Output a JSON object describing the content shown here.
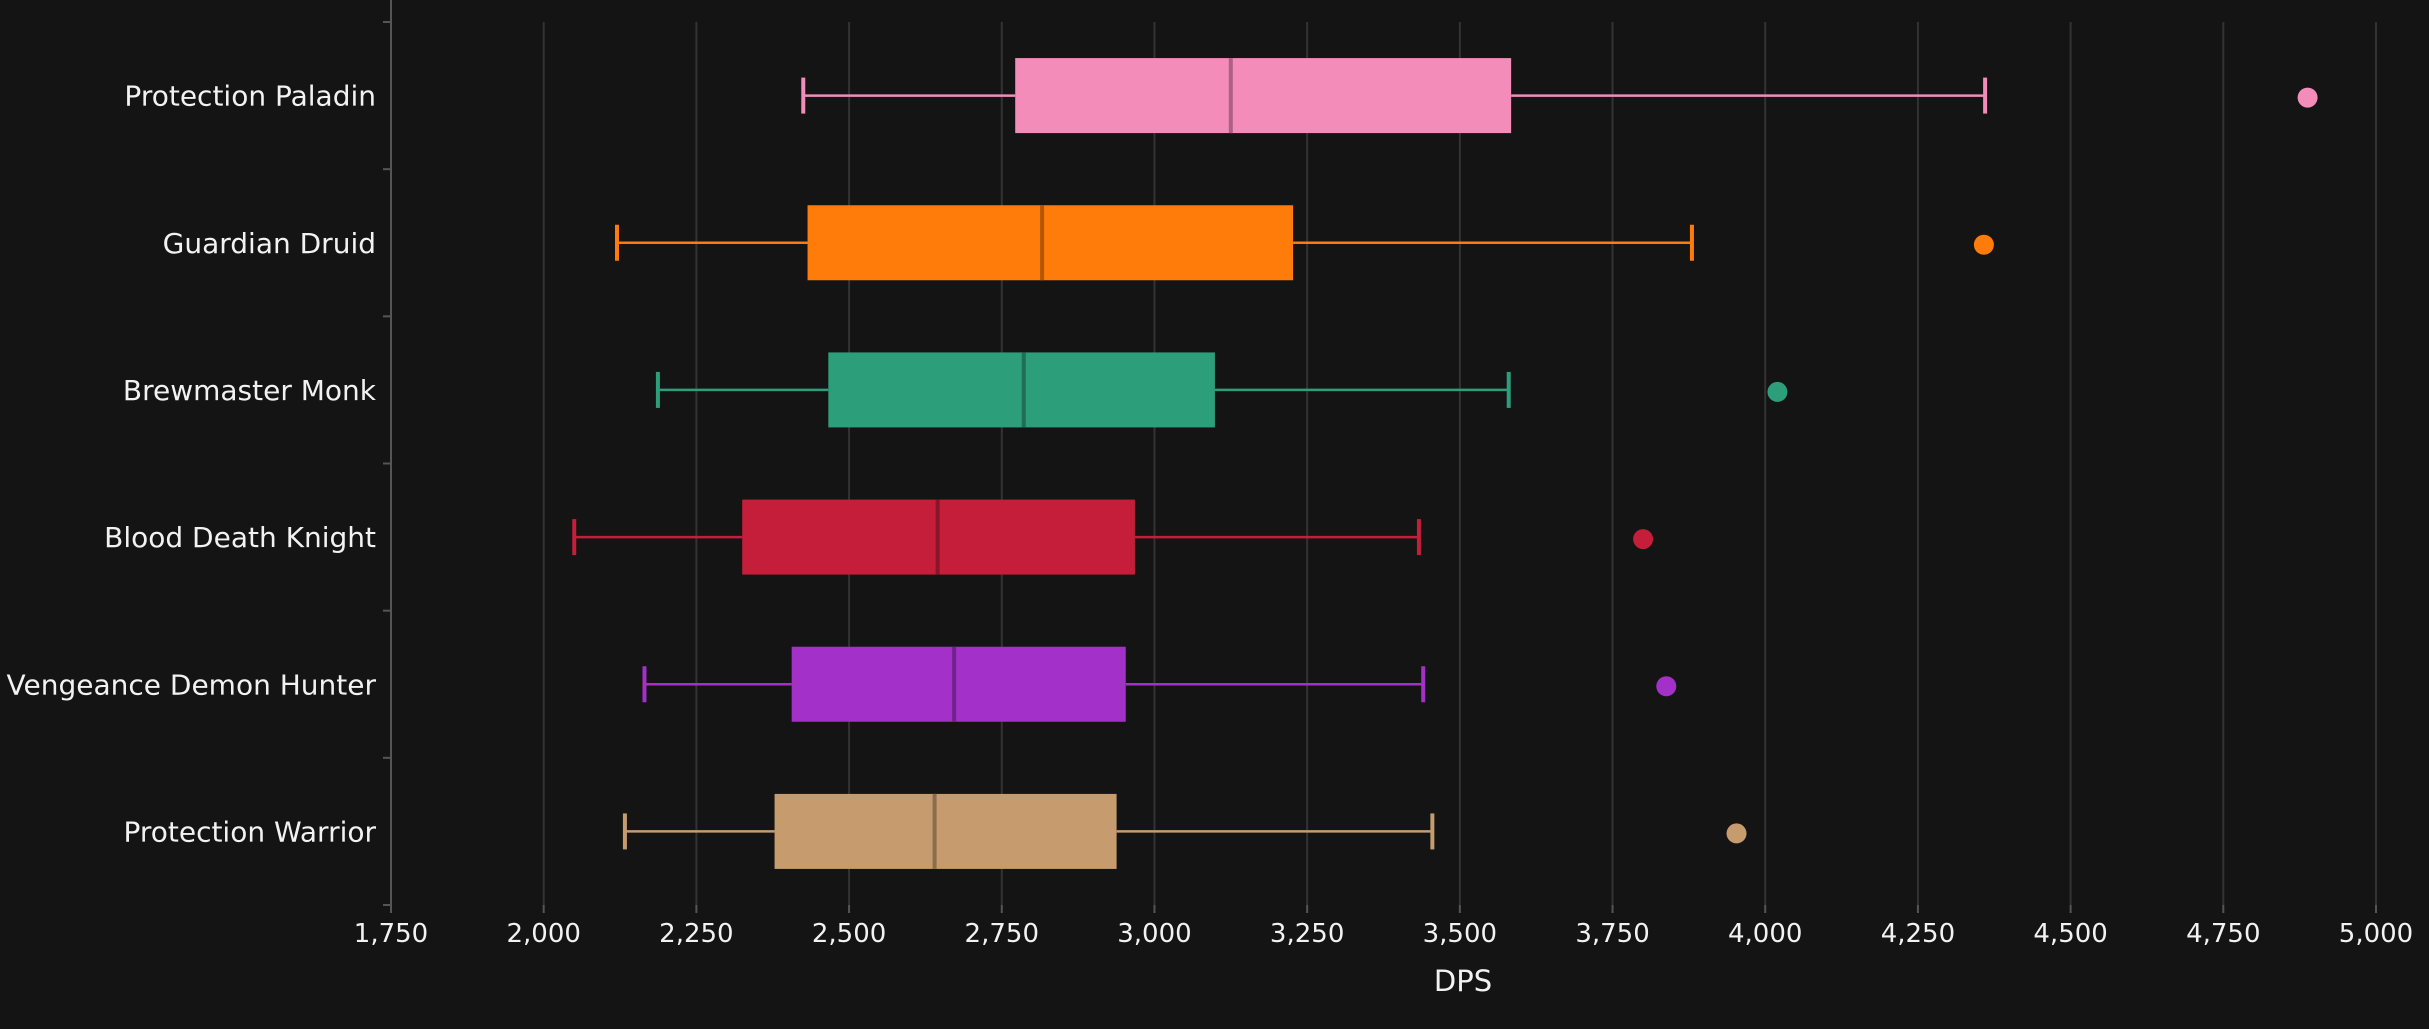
{
  "chart_data": {
    "type": "boxplot",
    "orientation": "horizontal",
    "xlabel": "DPS",
    "xlim": [
      1750,
      5000
    ],
    "xticks": [
      1750,
      2000,
      2250,
      2500,
      2750,
      3000,
      3250,
      3500,
      3750,
      4000,
      4250,
      4500,
      4750,
      5000
    ],
    "xtick_labels": [
      "1,750",
      "2,000",
      "2,250",
      "2,500",
      "2,750",
      "3,000",
      "3,250",
      "3,500",
      "3,750",
      "4,000",
      "4,250",
      "4,500",
      "4,750",
      "5,000"
    ],
    "grid": true,
    "series": [
      {
        "name": "Protection Paladin",
        "color": "#f48cba",
        "whisker_low": 2425,
        "q1": 2772,
        "median": 3125,
        "q3": 3584,
        "whisker_high": 4360,
        "outliers": [
          4888
        ]
      },
      {
        "name": "Guardian Druid",
        "color": "#ff7c0a",
        "whisker_low": 2120,
        "q1": 2432,
        "median": 2816,
        "q3": 3227,
        "whisker_high": 3880,
        "outliers": [
          4358
        ]
      },
      {
        "name": "Brewmaster Monk",
        "color": "#2d9e7a",
        "whisker_low": 2187,
        "q1": 2466,
        "median": 2786,
        "q3": 3099,
        "whisker_high": 3580,
        "outliers": [
          4020
        ]
      },
      {
        "name": "Blood Death Knight",
        "color": "#c41e3a",
        "whisker_low": 2050,
        "q1": 2325,
        "median": 2645,
        "q3": 2968,
        "whisker_high": 3433,
        "outliers": [
          3800
        ]
      },
      {
        "name": "Vengeance Demon Hunter",
        "color": "#a330c9",
        "whisker_low": 2165,
        "q1": 2406,
        "median": 2672,
        "q3": 2953,
        "whisker_high": 3440,
        "outliers": [
          3838
        ]
      },
      {
        "name": "Protection Warrior",
        "color": "#c69b6d",
        "whisker_low": 2133,
        "q1": 2378,
        "median": 2640,
        "q3": 2938,
        "whisker_high": 3455,
        "outliers": [
          3953
        ]
      }
    ]
  }
}
